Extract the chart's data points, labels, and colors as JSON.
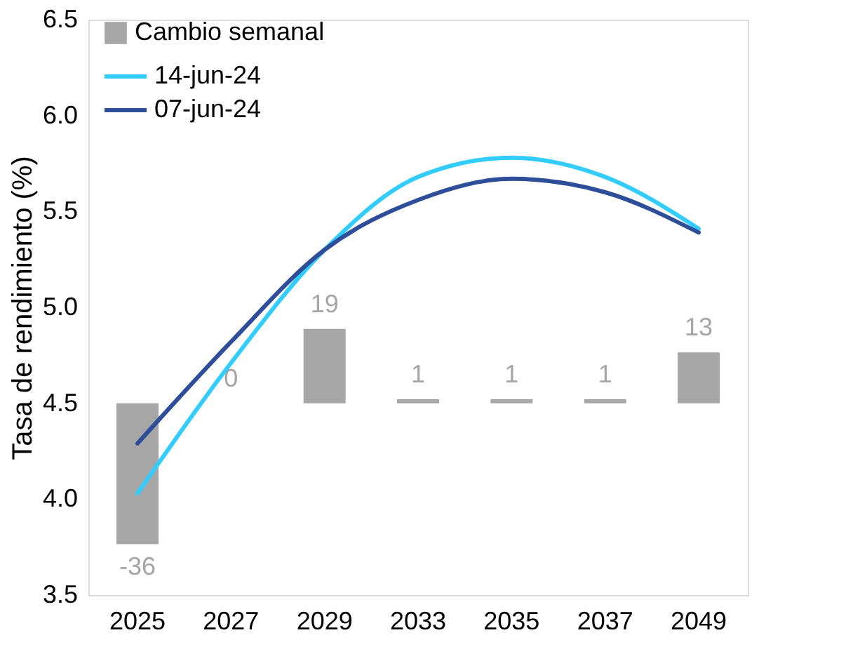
{
  "chart_data": {
    "type": "line",
    "ylabel": "Tasa de rendimiento (%)",
    "categories": [
      "2025",
      "2027",
      "2029",
      "2033",
      "2035",
      "2037",
      "2049"
    ],
    "ylim": [
      3.5,
      6.5
    ],
    "yticks": [
      3.5,
      {
        "value": 4,
        "label": "4.0"
      },
      4.5,
      {
        "value": 5,
        "label": "5.0"
      },
      5.5,
      {
        "value": 6,
        "label": "6.0"
      },
      6.5
    ],
    "y2lim": [
      -49,
      98
    ],
    "series": [
      {
        "name": "Cambio semanal",
        "type": "bar",
        "axis": "y2",
        "color": "#a6a6a6",
        "values": [
          -36,
          0,
          19,
          1,
          1,
          1,
          13
        ],
        "value_labels": [
          "-36",
          "0",
          "19",
          "1",
          "1",
          "1",
          "13"
        ]
      },
      {
        "name": "14-jun-24",
        "color": "#33ccff",
        "values": [
          4.03,
          4.71,
          5.3,
          5.68,
          5.78,
          5.68,
          5.41
        ]
      },
      {
        "name": "07-jun-24",
        "color": "#2e4e9a",
        "values": [
          4.29,
          4.82,
          5.3,
          5.56,
          5.67,
          5.6,
          5.39
        ]
      }
    ],
    "legend": "top left",
    "grid": false
  }
}
